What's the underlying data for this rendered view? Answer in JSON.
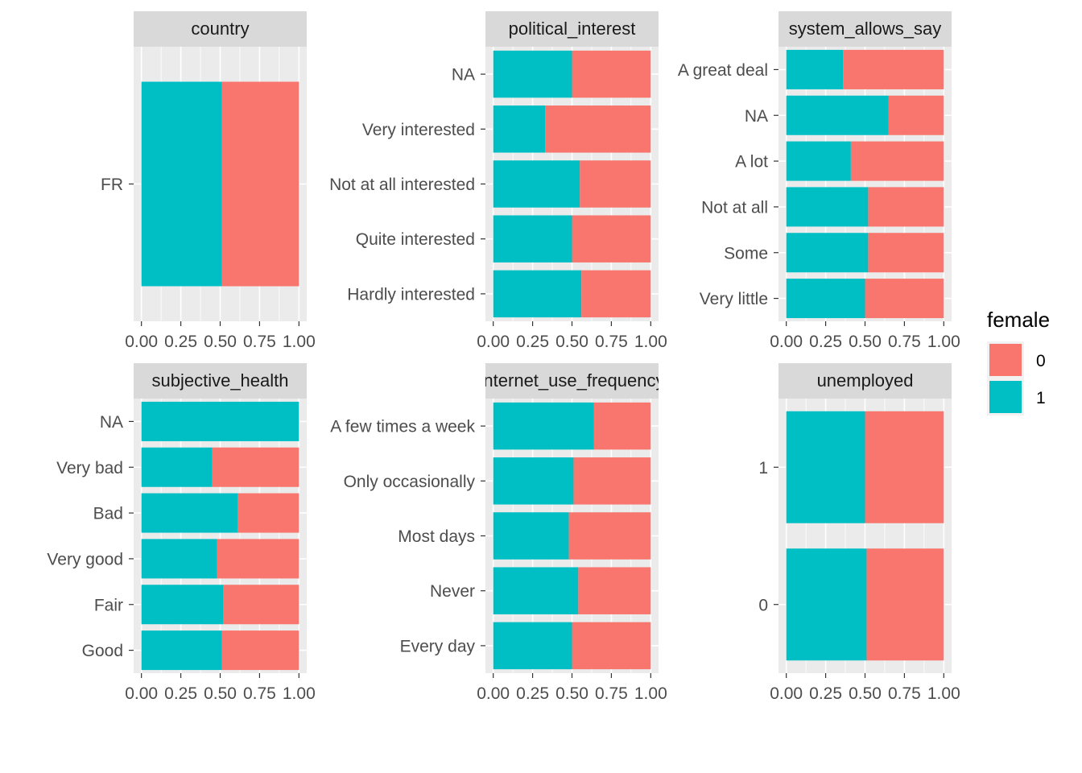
{
  "chart_data": {
    "type": "bar",
    "orientation": "horizontal",
    "position": "fill",
    "xlim": [
      0,
      1
    ],
    "x_ticks": [
      "0.00",
      "0.25",
      "0.50",
      "0.75",
      "1.00"
    ],
    "colors": {
      "0": "#F8766D",
      "1": "#00BFC4"
    },
    "legend": {
      "title": "female",
      "placement": "right",
      "entries": [
        "0",
        "1"
      ]
    },
    "panels": [
      {
        "title": "country",
        "categories": [
          "FR"
        ],
        "series": [
          {
            "name": "1",
            "values": [
              0.51
            ]
          },
          {
            "name": "0",
            "values": [
              0.49
            ]
          }
        ]
      },
      {
        "title": "political_interest",
        "categories": [
          "Hardly interested",
          "Quite interested",
          "Not at all interested",
          "Very interested",
          "NA"
        ],
        "series": [
          {
            "name": "1",
            "values": [
              0.56,
              0.5,
              0.55,
              0.33,
              0.5
            ]
          },
          {
            "name": "0",
            "values": [
              0.44,
              0.5,
              0.45,
              0.67,
              0.5
            ]
          }
        ]
      },
      {
        "title": "system_allows_say",
        "categories": [
          "Very little",
          "Some",
          "Not at all",
          "A lot",
          "NA",
          "A great deal"
        ],
        "series": [
          {
            "name": "1",
            "values": [
              0.5,
              0.52,
              0.52,
              0.41,
              0.65,
              0.36
            ]
          },
          {
            "name": "0",
            "values": [
              0.5,
              0.48,
              0.48,
              0.59,
              0.35,
              0.64
            ]
          }
        ]
      },
      {
        "title": "subjective_health",
        "categories": [
          "Good",
          "Fair",
          "Very good",
          "Bad",
          "Very bad",
          "NA"
        ],
        "series": [
          {
            "name": "1",
            "values": [
              0.51,
              0.52,
              0.48,
              0.61,
              0.45,
              1.0
            ]
          },
          {
            "name": "0",
            "values": [
              0.49,
              0.48,
              0.52,
              0.39,
              0.55,
              0.0
            ]
          }
        ]
      },
      {
        "title": "internet_use_frequency",
        "categories": [
          "Every day",
          "Never",
          "Most days",
          "Only occasionally",
          "A few times a week"
        ],
        "series": [
          {
            "name": "1",
            "values": [
              0.5,
              0.54,
              0.48,
              0.51,
              0.64
            ]
          },
          {
            "name": "0",
            "values": [
              0.5,
              0.46,
              0.52,
              0.49,
              0.36
            ]
          }
        ]
      },
      {
        "title": "unemployed",
        "categories": [
          "0",
          "1"
        ],
        "series": [
          {
            "name": "1",
            "values": [
              0.51,
              0.5
            ]
          },
          {
            "name": "0",
            "values": [
              0.49,
              0.5
            ]
          }
        ]
      }
    ]
  }
}
